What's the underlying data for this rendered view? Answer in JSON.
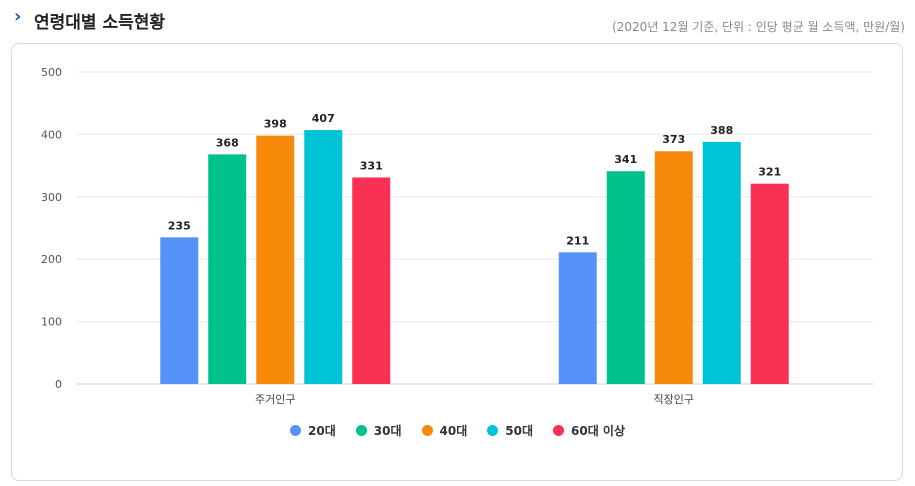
{
  "header": {
    "title": "연령대별 소득현황",
    "note": "(2020년 12월 기준, 단위 : 인당 평균 월 소득액, 만원/월)",
    "chevron_icon": "chevron-right-icon"
  },
  "chart_data": {
    "type": "bar",
    "categories": [
      "주거인구",
      "직장인구"
    ],
    "series": [
      {
        "name": "20대",
        "color": "#5593f8",
        "values": [
          235,
          211
        ]
      },
      {
        "name": "30대",
        "color": "#00c08b",
        "values": [
          368,
          341
        ]
      },
      {
        "name": "40대",
        "color": "#f88a0b",
        "values": [
          398,
          373
        ]
      },
      {
        "name": "50대",
        "color": "#00c4d5",
        "values": [
          407,
          388
        ]
      },
      {
        "name": "60대 이상",
        "color": "#fa3155",
        "values": [
          331,
          321
        ]
      }
    ],
    "ylim": [
      0,
      500
    ],
    "yticks": [
      0,
      100,
      200,
      300,
      400,
      500
    ],
    "grid": true,
    "legend": "bottom-center"
  }
}
